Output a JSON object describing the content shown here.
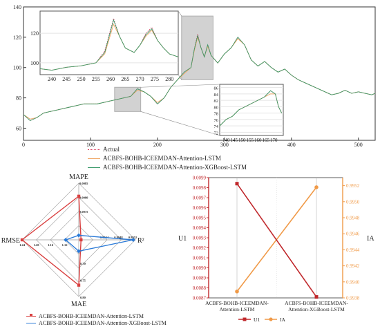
{
  "chart_data": [
    {
      "type": "line",
      "xlim": [
        0,
        525
      ],
      "ylim": [
        52,
        140
      ],
      "x_ticks": [
        0,
        100,
        200,
        300,
        400,
        500
      ],
      "y_ticks": [
        60,
        80,
        100,
        120,
        140
      ],
      "series": [
        {
          "name": "Actual",
          "color": "#d94060",
          "style": "dotted",
          "x": [
            0,
            10,
            20,
            30,
            40,
            50,
            60,
            70,
            80,
            90,
            100,
            110,
            120,
            130,
            140,
            150,
            160,
            170,
            180,
            190,
            200,
            210,
            220,
            230,
            240,
            250,
            255,
            260,
            265,
            270,
            275,
            280,
            290,
            300,
            310,
            320,
            330,
            340,
            350,
            360,
            370,
            380,
            390,
            400,
            410,
            420,
            430,
            440,
            450,
            460,
            470,
            480,
            490,
            500,
            510,
            520,
            525
          ],
          "y": [
            69,
            65,
            67,
            70,
            71,
            72,
            73,
            74,
            75,
            76,
            76,
            76,
            77,
            78,
            79,
            80,
            81,
            86,
            84,
            81,
            76,
            80,
            87,
            92,
            97,
            100,
            112,
            122,
            113,
            107,
            115,
            108,
            103,
            109,
            113,
            120,
            115,
            105,
            101,
            104,
            100,
            97,
            99,
            95,
            92,
            90,
            88,
            86,
            84,
            82,
            83,
            85,
            83,
            84,
            83,
            82,
            83
          ]
        },
        {
          "name": "ACBFS-BOHB-ICEEMDAN-Attention-LSTM",
          "color": "#f0a868",
          "style": "solid",
          "x": [
            0,
            10,
            20,
            30,
            40,
            50,
            60,
            70,
            80,
            90,
            100,
            110,
            120,
            130,
            140,
            150,
            160,
            170,
            180,
            190,
            200,
            210,
            220,
            230,
            240,
            250,
            255,
            260,
            265,
            270,
            275,
            280,
            290,
            300,
            310,
            320,
            330,
            340,
            350,
            360,
            370,
            380,
            390,
            400,
            410,
            420,
            430,
            440,
            450,
            460,
            470,
            480,
            490,
            500,
            510,
            520,
            525
          ],
          "y": [
            69,
            66,
            67,
            70,
            71,
            72,
            73,
            74,
            75,
            76,
            76,
            76,
            77,
            78,
            79,
            80,
            81,
            85,
            84,
            81,
            77,
            80,
            87,
            92,
            96,
            100,
            111,
            120,
            113,
            107,
            114,
            108,
            103,
            109,
            113,
            119,
            115,
            105,
            101,
            104,
            100,
            97,
            99,
            95,
            92,
            90,
            88,
            86,
            84,
            82,
            83,
            85,
            83,
            84,
            83,
            82,
            83
          ]
        },
        {
          "name": "ACBFS-BOHB-ICEEMDAN-Attention-XGBoost-LSTM",
          "color": "#3a9a6a",
          "style": "solid",
          "x": [
            0,
            10,
            20,
            30,
            40,
            50,
            60,
            70,
            80,
            90,
            100,
            110,
            120,
            130,
            140,
            150,
            160,
            170,
            180,
            190,
            200,
            210,
            220,
            230,
            240,
            250,
            255,
            260,
            265,
            270,
            275,
            280,
            290,
            300,
            310,
            320,
            330,
            340,
            350,
            360,
            370,
            380,
            390,
            400,
            410,
            420,
            430,
            440,
            450,
            460,
            470,
            480,
            490,
            500,
            510,
            520,
            525
          ],
          "y": [
            69,
            65,
            67,
            70,
            71,
            72,
            73,
            74,
            75,
            76,
            76,
            76,
            77,
            78,
            79,
            80,
            81,
            86,
            84,
            81,
            76,
            80,
            87,
            92,
            97,
            100,
            112,
            121,
            113,
            107,
            115,
            108,
            103,
            109,
            113,
            120,
            115,
            105,
            101,
            104,
            100,
            97,
            99,
            95,
            92,
            90,
            88,
            86,
            84,
            82,
            83,
            85,
            83,
            84,
            83,
            82,
            83
          ]
        }
      ],
      "legend": [
        "Actual",
        "ACBFS-BOHB-ICEEMDAN-Attention-LSTM",
        "ACBFS-BOHB-ICEEMDAN-Attention-XGBoost-LSTM"
      ],
      "insets": [
        {
          "xlim": [
            236,
            283
          ],
          "ylim": [
            92,
            135
          ],
          "x_ticks": [
            240,
            245,
            250,
            255,
            260,
            265,
            270,
            275,
            280
          ],
          "y_ticks": [
            100,
            120
          ],
          "x": [
            236,
            240,
            245,
            250,
            255,
            258,
            261,
            263,
            265,
            268,
            270,
            272,
            274,
            276,
            278,
            280,
            283
          ],
          "actual": [
            96,
            95,
            97,
            98,
            100,
            108,
            130,
            118,
            110,
            107,
            112,
            120,
            124,
            115,
            110,
            106,
            104
          ],
          "lstm": [
            96,
            95,
            97,
            98,
            100,
            106,
            126,
            118,
            110,
            107,
            112,
            118,
            122,
            115,
            110,
            106,
            104
          ],
          "xgb": [
            96,
            95,
            97,
            98,
            100,
            107,
            129,
            118,
            110,
            107,
            112,
            119,
            123,
            115,
            110,
            106,
            104
          ]
        },
        {
          "xlim": [
            136,
            176
          ],
          "ylim": [
            71,
            87
          ],
          "x_ticks": [
            140,
            145,
            150,
            155,
            160,
            165,
            170
          ],
          "y_ticks": [
            72,
            74,
            76,
            78,
            80,
            82,
            84,
            86
          ],
          "x": [
            136,
            140,
            144,
            148,
            152,
            156,
            160,
            164,
            168,
            171,
            173,
            175
          ],
          "actual": [
            74,
            76,
            77,
            79,
            80,
            81,
            82,
            83,
            85,
            84,
            80,
            78
          ],
          "lstm": [
            74,
            76,
            77,
            79,
            80,
            81,
            82,
            83,
            84,
            84,
            80,
            78
          ],
          "xgb": [
            74,
            76,
            77,
            79,
            80,
            81,
            82,
            83,
            85,
            84,
            80,
            78
          ]
        }
      ]
    },
    {
      "type": "radar",
      "axes": [
        "MAPE",
        "R²",
        "MAE",
        "RMSE"
      ],
      "tick_labels": {
        "MAPE": [
          "0.0085",
          "0.0080",
          "0.0075"
        ],
        "R²": [
          "0.9944",
          "0.9948",
          "0.9952"
        ],
        "MAE": [
          "0.70",
          "0.75",
          "0.80"
        ],
        "RMSE": [
          "1.12",
          "1.16",
          "1.20",
          "1.24"
        ]
      },
      "series": [
        {
          "name": "ACBFS-BOHB-ICEEMDAN-Attention-LSTM",
          "color": "#d94040",
          "fraction": [
            0.77,
            0.04,
            0.8,
            1.0
          ]
        },
        {
          "name": "ACBFS-BOHB-ICEEMDAN-Attention-XGBoost-LSTM",
          "color": "#2a7ad8",
          "fraction": [
            0.08,
            0.96,
            0.2,
            0.23
          ]
        }
      ]
    },
    {
      "type": "line",
      "categories": [
        "ACBFS-BOHB-ICEEMDAN-\nAttention-LSTM",
        "ACBFS-BOHB-ICEEMDAN-\nAttention-XGBoost-LSTM"
      ],
      "left_axis": {
        "label": "U1",
        "ylim": [
          0.0087,
          0.0099
        ],
        "ticks": [
          "0.0087",
          "0.0088",
          "0.0089",
          "0.0090",
          "0.0091",
          "0.0092",
          "0.0093",
          "0.0094",
          "0.0095",
          "0.0096",
          "0.0097",
          "0.0098",
          "0.0099"
        ]
      },
      "right_axis": {
        "label": "IA",
        "ylim": [
          0.9938,
          0.9953
        ],
        "ticks": [
          "0.9938",
          "0.9940",
          "0.9942",
          "0.9944",
          "0.9946",
          "0.9948",
          "0.9950",
          "0.9952"
        ]
      },
      "series": [
        {
          "name": "U1",
          "color": "#c0282c",
          "axis": "left",
          "values": [
            0.00984,
            0.00871
          ]
        },
        {
          "name": "IA",
          "color": "#f09a48",
          "axis": "right",
          "values": [
            0.99388,
            0.99518
          ]
        }
      ]
    }
  ]
}
